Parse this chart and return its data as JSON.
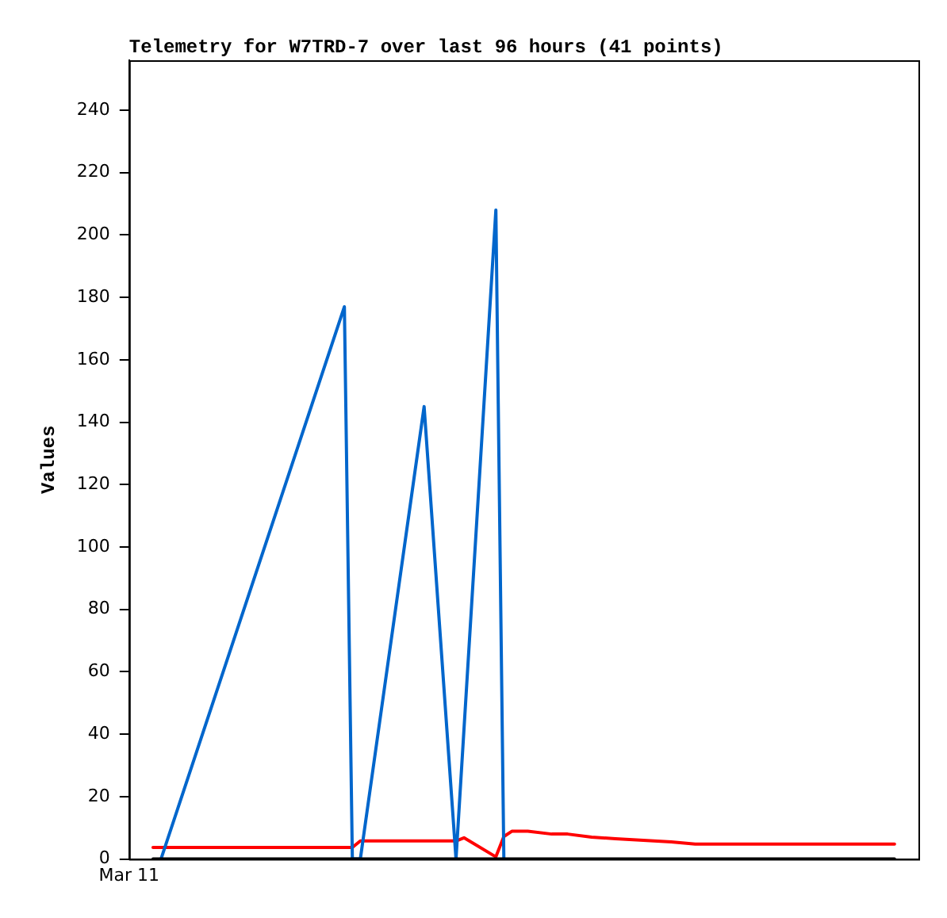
{
  "chart_data": {
    "type": "line",
    "title": "Telemetry for W7TRD-7 over last 96 hours (41 points)",
    "ylabel": "Values",
    "categories": [
      "Mar 11",
      null,
      null,
      null,
      null,
      null,
      null,
      null,
      null,
      null,
      null,
      null,
      null,
      null,
      null,
      null,
      null,
      null,
      null,
      null,
      null,
      null,
      null,
      null,
      null,
      null,
      null,
      null,
      null,
      null,
      null,
      null,
      null,
      null,
      null,
      null,
      null,
      null,
      null,
      null,
      null,
      null,
      null,
      null,
      null,
      null,
      null,
      null,
      null,
      null,
      null,
      null,
      null,
      null,
      null,
      null,
      null,
      null,
      null,
      null,
      null,
      null,
      null,
      null,
      null,
      null,
      null,
      null,
      null,
      null,
      null,
      null,
      null,
      null,
      null,
      null,
      null,
      null,
      null,
      null,
      null,
      null,
      null,
      null,
      null,
      null,
      null,
      null,
      null,
      null,
      null,
      null,
      null,
      null,
      null,
      null,
      null,
      null,
      null,
      null
    ],
    "ylim": [
      0,
      256
    ],
    "yticks": [
      0,
      20,
      40,
      60,
      80,
      100,
      120,
      140,
      160,
      180,
      200,
      220,
      240
    ],
    "grid": false,
    "legend": false,
    "marker": "none",
    "line_style": "solid",
    "series": [
      {
        "color": "#000000",
        "values": [
          null,
          null,
          null,
          0,
          0,
          0,
          0,
          0,
          0,
          0,
          0,
          0,
          0,
          0,
          0,
          0,
          0,
          0,
          0,
          0,
          0,
          0,
          0,
          0,
          0,
          0,
          0,
          0,
          0,
          0,
          0,
          0,
          0,
          0,
          0,
          0,
          0,
          0,
          0,
          0,
          0,
          0,
          0,
          0,
          0,
          0,
          0,
          0,
          0,
          0,
          0,
          0,
          0,
          0,
          0,
          0,
          0,
          0,
          0,
          0,
          0,
          0,
          0,
          0,
          0,
          0,
          0,
          0,
          0,
          0,
          0,
          0,
          0,
          0,
          0,
          0,
          0,
          0,
          0,
          0,
          0,
          0,
          0,
          0,
          0,
          0,
          0,
          0,
          0,
          0,
          0,
          0,
          0,
          0,
          0,
          0,
          0,
          null,
          null,
          null
        ]
      },
      {
        "color": "#0066cc",
        "values": [
          null,
          null,
          null,
          null,
          0,
          null,
          null,
          null,
          null,
          null,
          null,
          null,
          null,
          null,
          null,
          null,
          null,
          null,
          null,
          null,
          null,
          null,
          null,
          null,
          null,
          null,
          null,
          177,
          0,
          0,
          null,
          null,
          null,
          null,
          null,
          null,
          null,
          145,
          null,
          null,
          null,
          0,
          null,
          null,
          null,
          null,
          208,
          0,
          null,
          null,
          null,
          null,
          null,
          null,
          null,
          null,
          null,
          null,
          null,
          null,
          null,
          null,
          null,
          null,
          null,
          null,
          null,
          null,
          null,
          null,
          null,
          null,
          null,
          null,
          null,
          null,
          null,
          null,
          null,
          null,
          null,
          null,
          null,
          null,
          null,
          null,
          null,
          null,
          null,
          null,
          null,
          null,
          null,
          null,
          null,
          null,
          null,
          null,
          null,
          null
        ]
      },
      {
        "color": "#ff0000",
        "values": [
          null,
          null,
          null,
          3.7,
          null,
          null,
          null,
          null,
          null,
          null,
          null,
          null,
          null,
          null,
          null,
          null,
          null,
          null,
          null,
          null,
          null,
          null,
          null,
          null,
          null,
          null,
          null,
          null,
          3.7,
          5.8,
          null,
          null,
          null,
          null,
          null,
          null,
          null,
          null,
          null,
          null,
          null,
          5.8,
          6.8,
          null,
          null,
          null,
          0.7,
          7.2,
          8.9,
          null,
          8.9,
          null,
          null,
          8.0,
          null,
          8.0,
          null,
          null,
          7.0,
          null,
          null,
          6.5,
          null,
          null,
          null,
          null,
          null,
          null,
          5.5,
          null,
          null,
          4.8,
          null,
          null,
          null,
          null,
          null,
          null,
          null,
          null,
          null,
          null,
          null,
          null,
          null,
          null,
          null,
          null,
          null,
          null,
          null,
          null,
          null,
          null,
          null,
          null,
          4.8,
          null,
          null,
          null
        ]
      }
    ]
  }
}
